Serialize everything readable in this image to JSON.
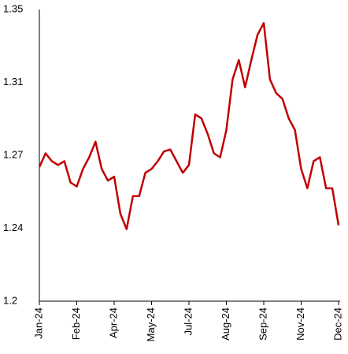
{
  "chart_data": {
    "type": "line",
    "categories": [
      "Jan-24",
      null,
      null,
      null,
      null,
      null,
      "Feb-24",
      null,
      null,
      null,
      null,
      null,
      "Apr-24",
      null,
      null,
      null,
      null,
      null,
      "May-24",
      null,
      null,
      null,
      null,
      null,
      "Jul-24",
      null,
      null,
      null,
      null,
      null,
      "Aug-24",
      null,
      null,
      null,
      null,
      null,
      "Sep-24",
      null,
      null,
      null,
      null,
      null,
      "Nov-24",
      null,
      null,
      null,
      null,
      null,
      "Dec-24"
    ],
    "series": [
      {
        "color": "#c00000",
        "values": [
          1.269,
          1.276,
          1.272,
          1.27,
          1.272,
          1.261,
          1.259,
          1.268,
          1.274,
          1.282,
          1.268,
          1.262,
          1.264,
          1.245,
          1.237,
          1.254,
          1.254,
          1.266,
          1.268,
          1.272,
          1.277,
          1.278,
          1.272,
          1.266,
          1.27,
          1.296,
          1.294,
          1.286,
          1.276,
          1.274,
          1.288,
          1.314,
          1.324,
          1.31,
          1.324,
          1.337,
          1.343,
          1.314,
          1.307,
          1.304,
          1.294,
          1.288,
          1.268,
          1.258,
          1.272,
          1.274,
          1.258,
          1.258,
          1.239
        ]
      }
    ],
    "ylim": [
      1.2,
      1.35
    ],
    "yticks": [
      1.2,
      {
        "value": 1.2375,
        "label": "1.24"
      },
      {
        "value": 1.275,
        "label": "1.27"
      },
      {
        "value": 1.3125,
        "label": "1.31"
      },
      1.35
    ],
    "grid": false
  }
}
